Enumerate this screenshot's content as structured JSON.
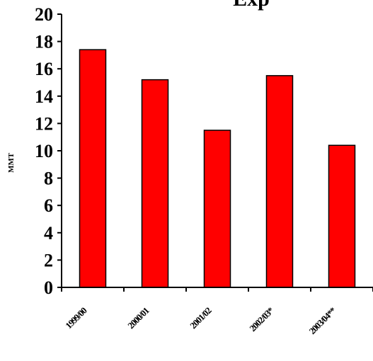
{
  "chart_data": {
    "type": "bar",
    "title": "Exp",
    "ylabel": "MMT",
    "xlabel": "",
    "categories": [
      "1999/00",
      "2000/01",
      "2001/02",
      "2002/03*",
      "2003/04**"
    ],
    "values": [
      17.4,
      15.2,
      11.5,
      15.5,
      10.4
    ],
    "ylim": [
      0,
      20
    ],
    "yticks": [
      0,
      2,
      4,
      6,
      8,
      10,
      12,
      14,
      16,
      18,
      20
    ],
    "bar_color": "#ff0000",
    "bar_edge_color": "#000000",
    "grid": false,
    "legend": false
  }
}
